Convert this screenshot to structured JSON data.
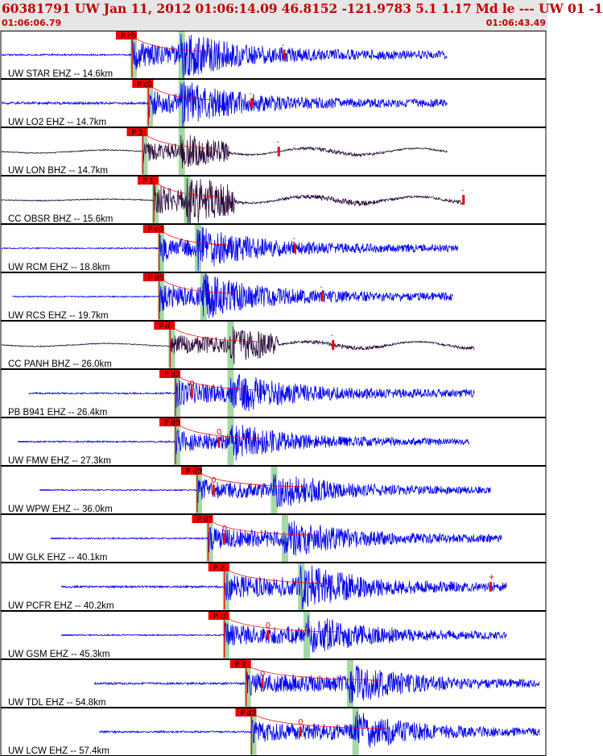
{
  "header": {
    "title": "60381791 UW Jan 11, 2012 01:06:14.09   46.8152 -121.9783  5.1 1.17 Md le --- UW 01  -1",
    "start_time": "01:06:06.79",
    "end_time": "01:06:43.49"
  },
  "colors": {
    "header_bg": "#e6e6e6",
    "header_text": "#c00000",
    "trace_blue": "#0000ee",
    "trace_dark": "#2a0a3a",
    "pick": "#ee0000",
    "window": "#9bd49b"
  },
  "traces": [
    {
      "label": "UW STAR EHZ -- 14.6km",
      "pick": "P c0",
      "pick_pos": 0.24,
      "s_pos": 0.33,
      "amp_pos": 0.52,
      "amp_mark": "-",
      "start": 0.0,
      "end": 0.82,
      "color": "blue",
      "amp": 28,
      "pre": 0.7,
      "seed": 1,
      "dc": 1
    },
    {
      "label": "UW LO2 EHZ -- 14.7km",
      "pick": "P c0",
      "pick_pos": 0.27,
      "s_pos": 0.33,
      "amp_pos": 0.46,
      "amp_mark": "-",
      "start": 0.0,
      "end": 0.82,
      "color": "blue",
      "amp": 26,
      "pre": 1.0,
      "seed": 2,
      "dc": 0
    },
    {
      "label": "UW LON BHZ -- 14.7km",
      "pick": "P 2",
      "pick_pos": 0.26,
      "s_pos": 0.33,
      "amp_pos": 0.51,
      "amp_mark": "-",
      "start": 0.0,
      "end": 0.82,
      "color": "dark",
      "amp": 20,
      "pre": 0.6,
      "seed": 3,
      "dc": 0
    },
    {
      "label": "CC OBSR BHZ -- 15.6km",
      "pick": "P 1",
      "pick_pos": 0.28,
      "s_pos": 0.34,
      "amp_pos": 0.85,
      "amp_mark": "-",
      "start": 0.0,
      "end": 0.85,
      "color": "dark",
      "amp": 30,
      "pre": 0.3,
      "seed": 4,
      "dc": 0
    },
    {
      "label": "UW RCM EHZ -- 18.8km",
      "pick": "P c0",
      "pick_pos": 0.29,
      "s_pos": 0.36,
      "amp_pos": 0.54,
      "amp_mark": "-",
      "start": 0.0,
      "end": 0.84,
      "color": "blue",
      "amp": 25,
      "pre": 0.5,
      "seed": 5,
      "dc": 1
    },
    {
      "label": "UW RCS EHZ -- 19.7km",
      "pick": "P d0",
      "pick_pos": 0.29,
      "s_pos": 0.37,
      "amp_pos": 0.59,
      "amp_mark": "-",
      "start": 0.02,
      "end": 0.83,
      "color": "blue",
      "amp": 26,
      "pre": 0.5,
      "seed": 6,
      "dc": 1
    },
    {
      "label": "CC PANH BHZ -- 26.0km",
      "pick": "P d",
      "pick_pos": 0.31,
      "s_pos": 0.42,
      "amp_pos": 0.61,
      "amp_mark": "-",
      "start": 0.0,
      "end": 0.87,
      "color": "dark",
      "amp": 22,
      "pre": 0.6,
      "seed": 7,
      "dc": 0
    },
    {
      "label": "PB B941 EHZ -- 26.4km",
      "pick": "P d2",
      "pick_pos": 0.32,
      "s_pos": 0.42,
      "amp_pos": 0.35,
      "amp_mark": "0",
      "start": 0.05,
      "end": 0.87,
      "color": "blue",
      "amp": 25,
      "pre": 0.7,
      "seed": 8,
      "dc": 0
    },
    {
      "label": "UW FMW EHZ -- 27.3km",
      "pick": "P d0",
      "pick_pos": 0.32,
      "s_pos": 0.42,
      "amp_pos": 0.4,
      "amp_mark": "0",
      "start": 0.05,
      "end": 0.86,
      "color": "blue",
      "amp": 22,
      "pre": 0.6,
      "seed": 9,
      "dc": 1
    },
    {
      "label": "UW WPW EHZ -- 36.0km",
      "pick": "P d0",
      "pick_pos": 0.36,
      "s_pos": 0.5,
      "amp_pos": 0.39,
      "amp_mark": "0",
      "start": 0.09,
      "end": 0.9,
      "color": "blue",
      "amp": 22,
      "pre": 0.5,
      "seed": 10,
      "dc": 1
    },
    {
      "label": "UW GLK EHZ -- 40.1km",
      "pick": "P d2",
      "pick_pos": 0.38,
      "s_pos": 0.52,
      "amp_pos": 0.41,
      "amp_mark": "0",
      "start": 0.11,
      "end": 0.92,
      "color": "blue",
      "amp": 24,
      "pre": 0.6,
      "seed": 11,
      "dc": 1
    },
    {
      "label": "UW PCFR EHZ -- 40.2km",
      "pick": "P 2",
      "pick_pos": 0.41,
      "s_pos": 0.55,
      "amp_pos": 0.9,
      "amp_mark": "+",
      "start": 0.11,
      "end": 0.93,
      "color": "blue",
      "amp": 27,
      "pre": 0.85,
      "seed": 12,
      "dc": 0
    },
    {
      "label": "UW GSM EHZ -- 45.3km",
      "pick": "P c0",
      "pick_pos": 0.41,
      "s_pos": 0.56,
      "amp_pos": 0.49,
      "amp_mark": "0",
      "start": 0.13,
      "end": 0.93,
      "color": "blue",
      "amp": 24,
      "pre": 0.5,
      "seed": 13,
      "dc": 1
    },
    {
      "label": "UW TDL EHZ -- 54.8km",
      "pick": "P 2",
      "pick_pos": 0.45,
      "s_pos": 0.64,
      "amp_pos": 0.48,
      "amp_mark": "0",
      "start": 0.17,
      "end": 0.99,
      "color": "blue",
      "amp": 23,
      "pre": 0.85,
      "seed": 14,
      "dc": 0
    },
    {
      "label": "UW LCW EHZ -- 57.4km",
      "pick": "P d3",
      "pick_pos": 0.46,
      "s_pos": 0.65,
      "amp_pos": 0.55,
      "amp_mark": "0",
      "start": 0.18,
      "end": 0.99,
      "color": "blue",
      "amp": 23,
      "pre": 0.75,
      "seed": 15,
      "dc": 0
    }
  ]
}
